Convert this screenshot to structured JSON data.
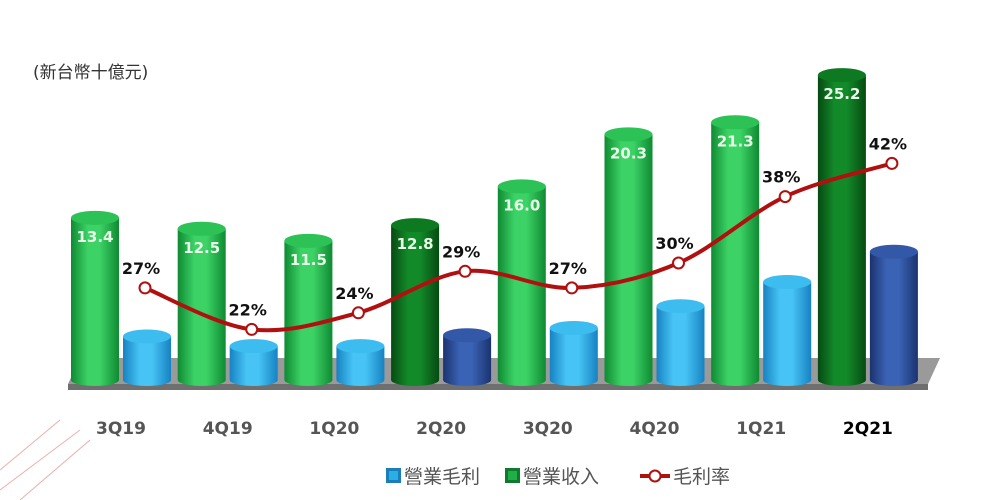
{
  "chart_data": {
    "type": "bar",
    "title": "",
    "unit_label": "(新台幣十億元)",
    "categories": [
      "3Q19",
      "4Q19",
      "1Q20",
      "2Q20",
      "3Q20",
      "4Q20",
      "1Q21",
      "2Q21"
    ],
    "highlight_category": "2Q21",
    "series": [
      {
        "name": "營業收入",
        "kind": "bar",
        "color": "#1fae48",
        "highlight_color": "#0b6e1d",
        "values": [
          13.4,
          12.5,
          11.5,
          12.8,
          16.0,
          20.3,
          21.3,
          25.2
        ],
        "labels": [
          "13.4",
          "12.5",
          "11.5",
          "12.8",
          "16.0",
          "20.3",
          "21.3",
          "25.2"
        ]
      },
      {
        "name": "營業毛利",
        "kind": "bar",
        "color": "#29aee6",
        "highlight_color": "#2a4e9a",
        "values": [
          3.6,
          2.8,
          2.8,
          3.7,
          4.3,
          6.1,
          8.1,
          10.6
        ]
      },
      {
        "name": "毛利率",
        "kind": "line",
        "color": "#b01010",
        "unit": "%",
        "values": [
          27,
          22,
          24,
          29,
          27,
          30,
          38,
          42
        ],
        "labels": [
          "27%",
          "22%",
          "24%",
          "29%",
          "27%",
          "30%",
          "38%",
          "42%"
        ]
      }
    ],
    "dark_categories": [
      "2Q20",
      "2Q21"
    ],
    "legend_position": "bottom",
    "grid": false
  }
}
